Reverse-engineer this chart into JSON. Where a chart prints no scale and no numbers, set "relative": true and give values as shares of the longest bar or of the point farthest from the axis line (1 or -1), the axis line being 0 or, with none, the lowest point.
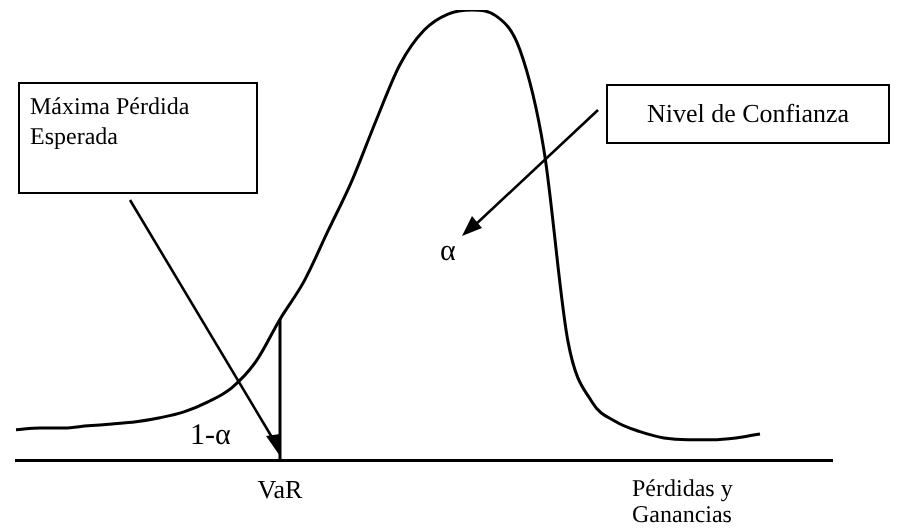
{
  "chart_data": {
    "type": "line",
    "relative": true,
    "xlabel": "Pérdidas y Ganancias",
    "categories": [
      null,
      null,
      null,
      null,
      null,
      null,
      null,
      null,
      null,
      null,
      null,
      null,
      null,
      null,
      null,
      null,
      null,
      null,
      null,
      null,
      null,
      null,
      null,
      null,
      null,
      null,
      null,
      null,
      null,
      null,
      null,
      null,
      null,
      null,
      null
    ],
    "series": [
      {
        "color": "#000000",
        "values": [
          0.067,
          0.071,
          0.071,
          0.076,
          0.08,
          0.085,
          0.094,
          0.107,
          0.129,
          0.161,
          0.219,
          0.313,
          0.397,
          0.509,
          0.621,
          0.754,
          0.879,
          0.955,
          0.991,
          1,
          0.987,
          0.911,
          0.688,
          0.263,
          0.129,
          0.085,
          0.063,
          0.049,
          0.045,
          0.045,
          0.049,
          0.058,
          null,
          null,
          null
        ]
      }
    ],
    "annotations": [
      "Máxima Pérdida Esperada",
      "Nivel de Confianza",
      "α",
      "1-α",
      "VaR"
    ],
    "grid": false,
    "legend": false,
    "marker": "none",
    "line_style": "solid"
  }
}
